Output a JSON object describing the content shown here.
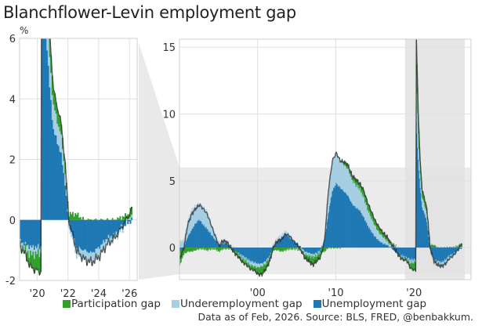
{
  "title": "Blanchflower-Levin employment gap",
  "legend": [
    {
      "label": "Participation gap",
      "color": "#33a02c"
    },
    {
      "label": "Underemployment gap",
      "color": "#a6cee3"
    },
    {
      "label": "Unemployment gap",
      "color": "#1f78b4"
    }
  ],
  "source": "Data as of Feb, 2026. Source: BLS, FRED, @benbakkum.",
  "colors": {
    "total_line": "#555555",
    "grid": "#e3e3e3",
    "highlight": "#e6e6e6"
  },
  "chart_data": [
    {
      "type": "bar",
      "name": "inset",
      "stacked": true,
      "unit_label": "%",
      "xlim": [
        2018.85,
        2026.5
      ],
      "ylim": [
        -2,
        6
      ],
      "yticks": [
        -2,
        0,
        2,
        4,
        6
      ],
      "xticks": [
        {
          "value": 2020,
          "label": "'20"
        },
        {
          "value": 2022,
          "label": "'22"
        },
        {
          "value": 2024,
          "label": "'24"
        },
        {
          "value": 2026,
          "label": "'26"
        }
      ],
      "grid": true
    },
    {
      "type": "bar",
      "name": "full-history",
      "stacked": true,
      "xlim": [
        1990.0,
        2027.3
      ],
      "ylim": [
        -2.4,
        15.6
      ],
      "yticks": [
        0,
        5,
        10,
        15
      ],
      "xticks": [
        {
          "value": 2000,
          "label": "'00"
        },
        {
          "value": 2010,
          "label": "'10"
        },
        {
          "value": 2020,
          "label": "'20"
        }
      ],
      "zoom_region": {
        "x": [
          2018.85,
          2026.5
        ],
        "y": [
          -2,
          6
        ]
      },
      "grid": true
    }
  ],
  "series_data": {
    "x": [
      1990.0,
      1990.5,
      1991.0,
      1991.5,
      1992.0,
      1992.5,
      1993.0,
      1993.5,
      1994.0,
      1994.5,
      1995.0,
      1995.5,
      1996.0,
      1996.5,
      1997.0,
      1997.5,
      1998.0,
      1998.5,
      1999.0,
      1999.5,
      2000.0,
      2000.5,
      2001.0,
      2001.5,
      2002.0,
      2002.5,
      2003.0,
      2003.5,
      2004.0,
      2004.5,
      2005.0,
      2005.5,
      2006.0,
      2006.5,
      2007.0,
      2007.5,
      2008.0,
      2008.5,
      2009.0,
      2009.5,
      2010.0,
      2010.5,
      2011.0,
      2011.5,
      2012.0,
      2012.5,
      2013.0,
      2013.5,
      2014.0,
      2014.5,
      2015.0,
      2015.5,
      2016.0,
      2016.5,
      2017.0,
      2017.5,
      2018.0,
      2018.5,
      2019.0,
      2019.5,
      2020.0,
      2020.2,
      2020.25,
      2020.5,
      2020.75,
      2021.0,
      2021.5,
      2021.75,
      2022.0,
      2022.5,
      2023.0,
      2023.5,
      2024.0,
      2024.5,
      2025.0,
      2025.5,
      2026.0,
      2026.1
    ],
    "unemployment": [
      -0.3,
      0.0,
      0.8,
      1.3,
      1.8,
      2.1,
      1.7,
      1.4,
      1.0,
      0.6,
      0.2,
      0.3,
      0.3,
      0.0,
      -0.2,
      -0.4,
      -0.6,
      -0.8,
      -1.0,
      -1.1,
      -1.2,
      -1.2,
      -1.0,
      -0.6,
      0.1,
      0.5,
      0.7,
      1.0,
      0.8,
      0.5,
      0.3,
      0.0,
      -0.3,
      -0.4,
      -0.5,
      -0.4,
      -0.2,
      0.5,
      2.5,
      4.2,
      4.8,
      4.5,
      4.2,
      3.9,
      3.3,
      3.0,
      2.8,
      2.3,
      1.7,
      1.2,
      0.8,
      0.5,
      0.3,
      0.2,
      0.0,
      -0.3,
      -0.5,
      -0.6,
      -0.75,
      -0.9,
      -0.9,
      -0.9,
      9.5,
      6.5,
      4.5,
      3.0,
      2.2,
      1.3,
      -0.1,
      -0.9,
      -1.0,
      -1.1,
      -0.9,
      -0.6,
      -0.5,
      -0.2,
      -0.05,
      0.0
    ],
    "underemployment": [
      0.5,
      0.5,
      1.2,
      1.5,
      1.3,
      1.2,
      1.3,
      1.3,
      0.8,
      0.4,
      0.2,
      0.3,
      0.2,
      0.1,
      0.0,
      -0.1,
      -0.2,
      -0.2,
      -0.3,
      -0.3,
      -0.3,
      -0.2,
      -0.2,
      -0.1,
      0.2,
      0.2,
      0.2,
      0.2,
      0.2,
      0.1,
      0.0,
      -0.1,
      -0.2,
      -0.2,
      -0.2,
      -0.2,
      -0.1,
      0.3,
      1.8,
      2.3,
      2.3,
      2.0,
      2.0,
      2.0,
      1.8,
      1.7,
      1.6,
      1.5,
      1.2,
      1.0,
      0.8,
      0.6,
      0.5,
      0.3,
      0.2,
      0.1,
      0.0,
      -0.2,
      -0.1,
      -0.25,
      -0.2,
      -0.2,
      3.5,
      2.0,
      1.0,
      0.8,
      0.6,
      0.4,
      -0.1,
      -0.3,
      -0.3,
      -0.3,
      -0.3,
      -0.2,
      -0.1,
      -0.1,
      0.1,
      0.05
    ],
    "participation": [
      -1.0,
      -0.5,
      -0.3,
      -0.3,
      -0.2,
      -0.1,
      -0.1,
      -0.2,
      -0.1,
      -0.1,
      -0.3,
      -0.1,
      -0.1,
      -0.1,
      -0.2,
      -0.2,
      -0.3,
      -0.3,
      -0.3,
      -0.3,
      -0.5,
      -0.6,
      -0.4,
      -0.3,
      -0.2,
      -0.2,
      -0.3,
      -0.2,
      -0.1,
      -0.1,
      -0.1,
      -0.1,
      -0.3,
      -0.4,
      -0.6,
      -0.4,
      -0.4,
      -0.3,
      0.0,
      0.0,
      0.0,
      0.0,
      0.2,
      0.3,
      0.3,
      0.4,
      0.4,
      0.5,
      0.5,
      0.5,
      0.4,
      0.4,
      0.3,
      0.3,
      0.1,
      0.1,
      -0.1,
      -0.1,
      -0.1,
      -0.4,
      -0.6,
      -0.6,
      2.6,
      1.5,
      0.8,
      0.5,
      0.4,
      0.3,
      0.2,
      0.2,
      0.0,
      0.0,
      0.0,
      0.0,
      0.0,
      0.1,
      0.2,
      0.3
    ]
  }
}
